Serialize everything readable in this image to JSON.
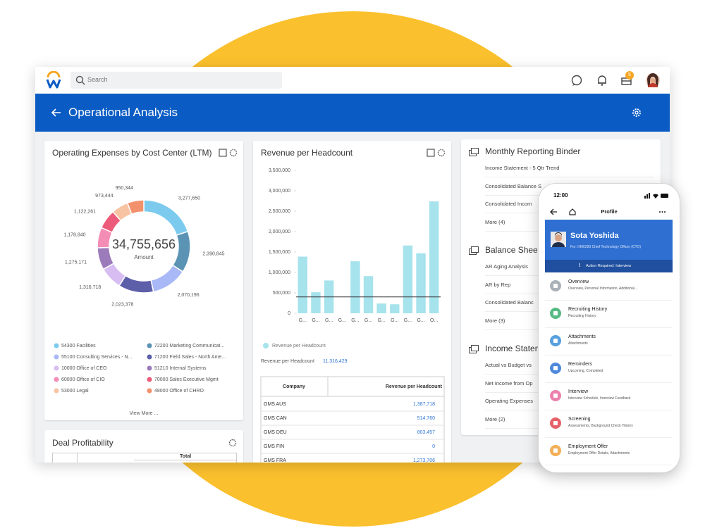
{
  "header": {
    "search": "Search",
    "badge": "5"
  },
  "banner": {
    "title": "Operational Analysis"
  },
  "expenses": {
    "title": "Operating Expenses by Cost Center (LTM)",
    "total": "34,755,656",
    "total_caption": "Amount",
    "chart": {
      "type": "pie",
      "categories": [
        "54300 Facilities",
        "72200 Marketing Communicat...",
        "55100 Consulting Services - N...",
        "71200 Field Sales - North Ame...",
        "10000 Office of CEO",
        "51210 Internal Systems",
        "60000 Office of CIO",
        "70000 Sales Executive Mgmt",
        "53000 Legal",
        "48000 Office of CHRO"
      ],
      "values": [
        3277650,
        2390845,
        2070196,
        2023378,
        1316718,
        1275171,
        1178840,
        1122261,
        973444,
        950344
      ],
      "value_labels": [
        "3,277,650",
        "2,390,845",
        "2,070,196",
        "2,023,378",
        "1,316,718",
        "1,275,171",
        "1,178,840",
        "1,122,261",
        "973,444",
        "950,344"
      ],
      "colors": [
        "#7ccbef",
        "#5b93b4",
        "#a9b8f6",
        "#5d5fa8",
        "#d7bdf2",
        "#9c7bbb",
        "#f48db6",
        "#ec5c7a",
        "#f8c3a3",
        "#f3916d"
      ]
    },
    "view_more": "View More ..."
  },
  "revenue": {
    "title": "Revenue per Headcount",
    "chart": {
      "type": "bar",
      "categories": [
        "G...",
        "G...",
        "G...",
        "G...",
        "G...",
        "G...",
        "G...",
        "G...",
        "G...",
        "G...",
        "O..."
      ],
      "series": [
        {
          "name": "Revenue per Headcount",
          "color": "#a6e3ec",
          "values": [
            1387718,
            514760,
            803457,
            0,
            1273706,
            910000,
            240000,
            220000,
            1660000,
            1470000,
            2740000
          ]
        }
      ],
      "ylim": [
        0,
        3500000
      ],
      "yticks": [
        0,
        {
          "value": 500000,
          "label": "500,000"
        },
        {
          "value": 1000000,
          "label": "1,000,000"
        },
        {
          "value": 1500000,
          "label": "1,500,000"
        },
        {
          "value": 2000000,
          "label": "2,000,000"
        },
        {
          "value": 2500000,
          "label": "2,500,000"
        },
        {
          "value": 3000000,
          "label": "3,000,000"
        },
        {
          "value": 3500000,
          "label": "3,500,000"
        }
      ],
      "reference_value": 400000,
      "grid": false
    },
    "summary_label": "Revenue per Headcount",
    "summary_value": "11,316,429",
    "table": {
      "columns": [
        "Company",
        "Revenue per Headcount"
      ],
      "rows": [
        [
          "GMS AUS",
          "1,387,718"
        ],
        [
          "GMS CAN",
          "514,760"
        ],
        [
          "GMS DEU",
          "803,457"
        ],
        [
          "GMS FIN",
          "0"
        ],
        [
          "GMS FRA",
          "1,273,706"
        ]
      ]
    }
  },
  "deal": {
    "title": "Deal Profitability",
    "column": "Total"
  },
  "binder": {
    "sections": [
      {
        "title": "Monthly Reporting Binder",
        "items": [
          "Income Statement - 5 Qtr Trend",
          "Consolidated Balance S",
          "Consolidated Incom",
          "More (4)"
        ]
      },
      {
        "title": "Balance Sheet",
        "items": [
          "AR Aging Analysis",
          "AR by Rep",
          "Consolidated Balanc",
          "More (3)"
        ]
      },
      {
        "title": "Income Statem",
        "items": [
          "Actual vs Budget vs",
          "Net Income from Op",
          "Operating Expenses",
          "More (2)"
        ]
      }
    ]
  },
  "phone": {
    "time": "12:00",
    "nav_title": "Profile",
    "name": "Sota Yoshida",
    "subtitle": "For: IH00293 Chief Technology Officer (CTO)",
    "action": "Action Required: Interview",
    "items": [
      {
        "title": "Overview",
        "subtitle": "Overview, Personal Information, Additional...",
        "color": "#9aa3ad"
      },
      {
        "title": "Recruiting History",
        "subtitle": "Recruiting History",
        "color": "#3cae6e"
      },
      {
        "title": "Attachments",
        "subtitle": "Attachments",
        "color": "#3a8fd8"
      },
      {
        "title": "Reminders",
        "subtitle": "Upcoming, Completed",
        "color": "#2f74d6"
      },
      {
        "title": "Interview",
        "subtitle": "Interview Schedule, Interview Feedback",
        "color": "#e96b9f"
      },
      {
        "title": "Screening",
        "subtitle": "Assessments, Background Check History",
        "color": "#e2454f"
      },
      {
        "title": "Employment Offer",
        "subtitle": "Employment Offer Details, Attachments",
        "color": "#f0a13a"
      }
    ]
  }
}
